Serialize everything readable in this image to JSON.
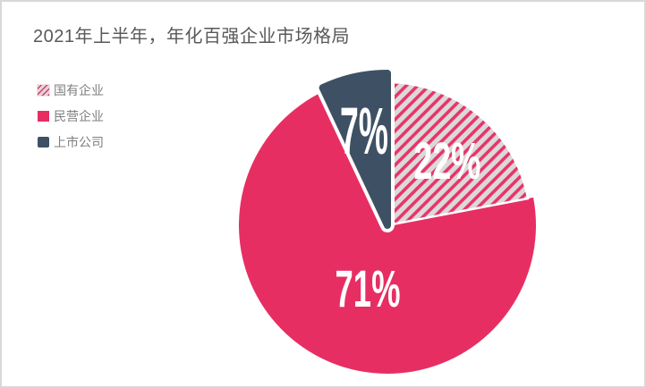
{
  "title": "2021年上半年，年化百强企业市场格局",
  "chart_data": {
    "type": "pie",
    "title": "2021年上半年，年化百强企业市场格局",
    "legend_position": "top-left",
    "direction": "clockwise",
    "start_angle_deg": 0,
    "slices": [
      {
        "name": "国有企业",
        "value": 22,
        "label": "22%",
        "style": "hatched-pink"
      },
      {
        "name": "民营企业",
        "value": 71,
        "label": "71%",
        "style": "solid-pink"
      },
      {
        "name": "上市公司",
        "value": 7,
        "label": "7%",
        "style": "dark-slate",
        "emphasized": true
      }
    ]
  },
  "colors": {
    "pink": "#e72e63",
    "dark_slate": "#3e5164",
    "hatch_stripe": "#e7356b",
    "hatch_bg": "#dbd9d9",
    "label_text": "#ffffff",
    "title_text": "#595959",
    "legend_text": "#7f7f7f",
    "card_border": "#d8d8d8",
    "background": "#ffffff"
  }
}
